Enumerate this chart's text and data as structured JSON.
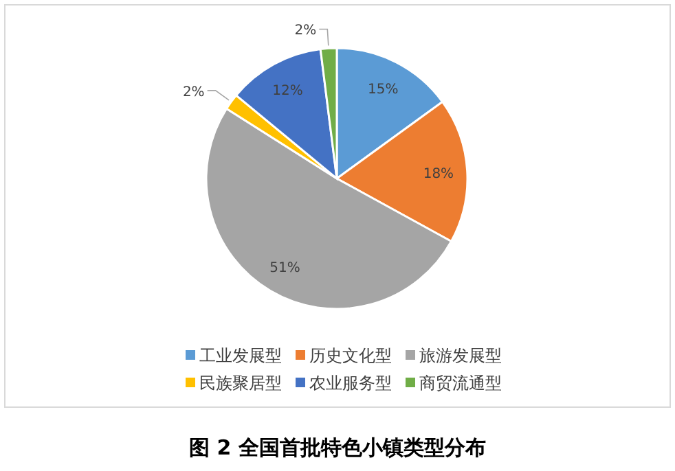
{
  "chart_data": {
    "type": "pie",
    "title": "图 2  全国首批特色小镇类型分布",
    "categories": [
      "工业发展型",
      "历史文化型",
      "旅游发展型",
      "民族聚居型",
      "农业服务型",
      "商贸流通型"
    ],
    "values": [
      15,
      18,
      51,
      2,
      12,
      2
    ],
    "colors": [
      "#5b9bd5",
      "#ed7d31",
      "#a5a5a5",
      "#ffc000",
      "#4472c4",
      "#70ad47"
    ],
    "value_labels": [
      "15%",
      "18%",
      "51%",
      "2%",
      "12%",
      "2%"
    ],
    "legend": "bottom"
  }
}
